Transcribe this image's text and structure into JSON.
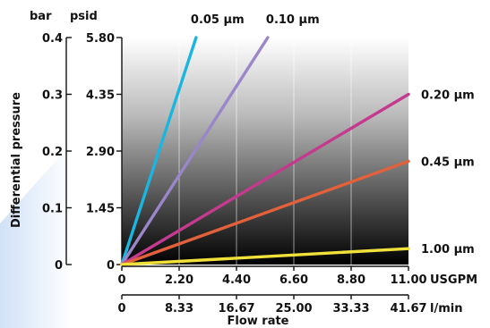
{
  "chart_data": {
    "type": "line",
    "ylabel": "Differential pressure",
    "xlabel": "Flow rate",
    "y_units": [
      "bar",
      "psid"
    ],
    "y_ticks_bar": [
      "0.4",
      "0.3",
      "0.2",
      "0.1",
      "0"
    ],
    "y_ticks_psid": [
      "5.80",
      "4.35",
      "2.90",
      "1.45",
      "0"
    ],
    "x_unit_usgpm": "USGPM",
    "x_unit_lmin": "l/min",
    "x_ticks_usgpm": [
      "0",
      "2.20",
      "4.40",
      "6.60",
      "8.80",
      "11.00"
    ],
    "x_ticks_lmin": [
      "0",
      "8.33",
      "16.67",
      "25.00",
      "33.33",
      "41.67"
    ],
    "xlim": [
      0,
      11
    ],
    "ylim": [
      0,
      0.4
    ],
    "series": [
      {
        "name": "0.05 µm",
        "color": "#1ab6e0",
        "points": [
          [
            0,
            0
          ],
          [
            2.85,
            0.4
          ]
        ]
      },
      {
        "name": "0.10 µm",
        "color": "#9a86c8",
        "points": [
          [
            0,
            0
          ],
          [
            5.6,
            0.4
          ]
        ]
      },
      {
        "name": "0.20 µm",
        "color": "#c43a8e",
        "points": [
          [
            0,
            0
          ],
          [
            11,
            0.3
          ]
        ]
      },
      {
        "name": "0.45 µm",
        "color": "#e2613b",
        "points": [
          [
            0,
            0
          ],
          [
            11,
            0.182
          ]
        ]
      },
      {
        "name": "1.00 µm",
        "color": "#f0e03a",
        "points": [
          [
            0,
            0
          ],
          [
            11,
            0.028
          ]
        ]
      }
    ]
  }
}
